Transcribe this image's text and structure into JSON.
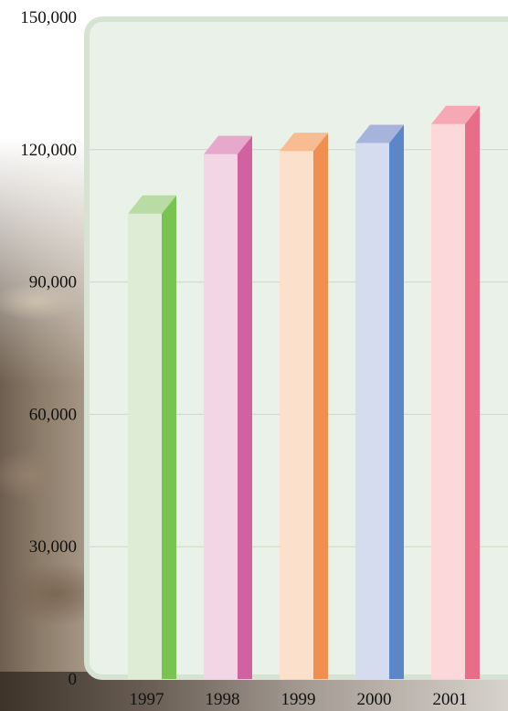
{
  "chart_data": {
    "type": "bar",
    "title": "",
    "xlabel": "",
    "ylabel": "",
    "categories": [
      "1997",
      "1998",
      "1999",
      "2000",
      "2001"
    ],
    "values": [
      105500,
      119000,
      119700,
      121500,
      125800
    ],
    "ylim": [
      0,
      150000
    ],
    "yticks": [
      0,
      30000,
      60000,
      90000,
      120000,
      150000
    ],
    "ytick_labels": [
      "0",
      "30,000",
      "60,000",
      "90,000",
      "120,000",
      "150,000"
    ],
    "grid": true,
    "bar_style": "3d",
    "colors": [
      {
        "front": "#dfecd5",
        "side": "#79c350",
        "top": "#b9dca4"
      },
      {
        "front": "#f3d6e5",
        "side": "#d1619f",
        "top": "#e7a9cb"
      },
      {
        "front": "#fbe0cc",
        "side": "#f08f51",
        "top": "#f7bc91"
      },
      {
        "front": "#d6dcf0",
        "side": "#5c86c8",
        "top": "#a6b4dc"
      },
      {
        "front": "#fcd8da",
        "side": "#e86d86",
        "top": "#f6a9b4"
      }
    ]
  },
  "colors": {
    "panel_bg": "#e9f1e8",
    "panel_border": "#d6e3d2",
    "gridline": "#c9dbc4"
  }
}
